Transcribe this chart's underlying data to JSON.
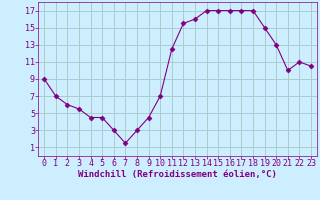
{
  "x": [
    0,
    1,
    2,
    3,
    4,
    5,
    6,
    7,
    8,
    9,
    10,
    11,
    12,
    13,
    14,
    15,
    16,
    17,
    18,
    19,
    20,
    21,
    22,
    23
  ],
  "y": [
    9,
    7,
    6,
    5.5,
    4.5,
    4.5,
    3,
    1.5,
    3,
    4.5,
    7,
    12.5,
    15.5,
    16,
    17,
    17,
    17,
    17,
    17,
    15,
    13,
    10,
    11,
    10.5
  ],
  "line_color": "#800080",
  "marker": "D",
  "marker_size": 2.5,
  "bg_color": "#cceeff",
  "grid_color": "#aacccc",
  "xlabel": "Windchill (Refroidissement éolien,°C)",
  "xlabel_color": "#800080",
  "xlabel_fontsize": 6.5,
  "tick_color": "#800080",
  "tick_fontsize": 6,
  "ylim": [
    0,
    18
  ],
  "xlim": [
    -0.5,
    23.5
  ],
  "yticks": [
    1,
    3,
    5,
    7,
    9,
    11,
    13,
    15,
    17
  ],
  "xticks": [
    0,
    1,
    2,
    3,
    4,
    5,
    6,
    7,
    8,
    9,
    10,
    11,
    12,
    13,
    14,
    15,
    16,
    17,
    18,
    19,
    20,
    21,
    22,
    23
  ]
}
